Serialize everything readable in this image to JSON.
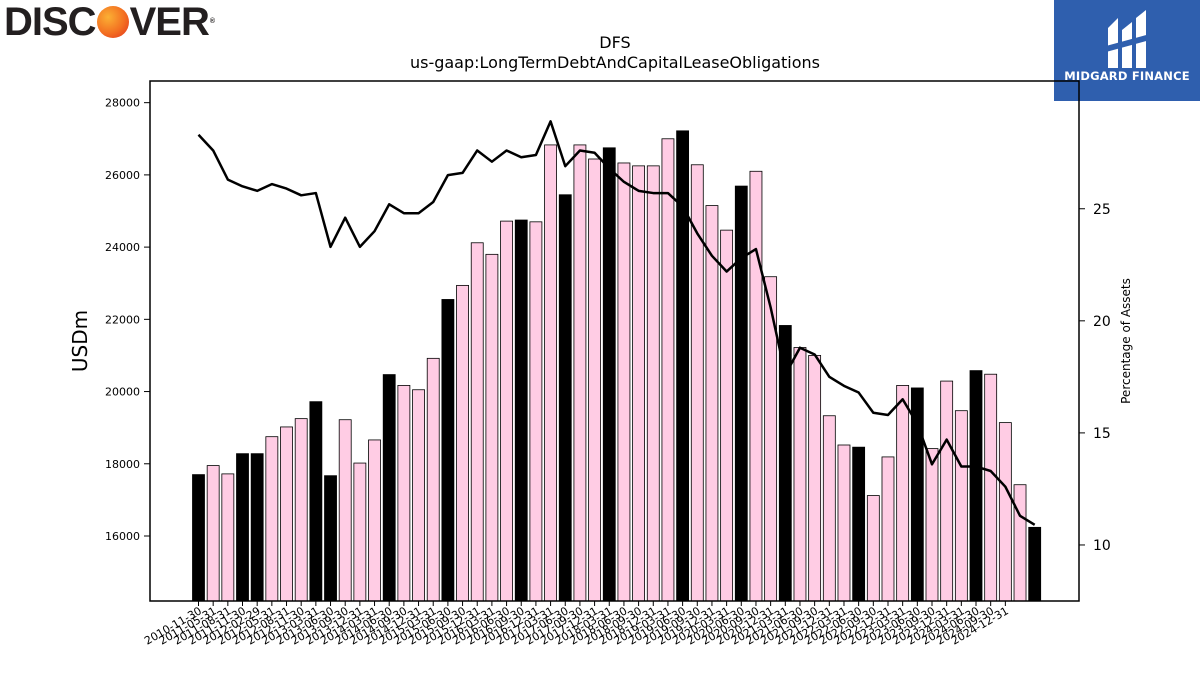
{
  "brand": {
    "left": "DISC",
    "right": "VER",
    "reg": "®"
  },
  "watermark": {
    "name": "MIDGARD FINANCE"
  },
  "chart_data": {
    "type": "bar",
    "title": "DFS",
    "subtitle": "us-gaap:LongTermDebtAndCapitalLeaseObligations",
    "ylabel": "USDm",
    "y2label": "Percentage of Assets",
    "ylim": [
      14200,
      28600
    ],
    "y2lim": [
      7.5,
      30.7
    ],
    "yticks": [
      16000,
      18000,
      20000,
      22000,
      24000,
      26000,
      28000
    ],
    "y2ticks": [
      10,
      15,
      20,
      25
    ],
    "categories": [
      "2010-11-30",
      "2011-05-31",
      "2011-08-31",
      "2011-11-30",
      "2012-02-29",
      "2012-05-31",
      "2012-08-31",
      "2012-11-30",
      "2013-03-31",
      "2013-06-30",
      "2013-09-30",
      "2013-12-31",
      "2014-03-31",
      "2014-06-30",
      "2014-09-30",
      "2014-12-31",
      "2015-03-31",
      "2015-06-30",
      "2015-09-30",
      "2015-12-31",
      "2016-03-31",
      "2016-06-30",
      "2016-09-30",
      "2016-12-31",
      "2017-03-31",
      "2017-06-30",
      "2017-09-30",
      "2017-12-31",
      "2018-03-31",
      "2018-06-30",
      "2018-09-30",
      "2018-12-31",
      "2019-03-31",
      "2019-06-30",
      "2019-09-30",
      "2019-12-31",
      "2020-03-31",
      "2020-06-30",
      "2020-09-30",
      "2020-12-31",
      "2021-03-31",
      "2021-06-30",
      "2021-09-30",
      "2021-12-31",
      "2022-03-31",
      "2022-06-30",
      "2022-09-30",
      "2022-12-31",
      "2023-03-31",
      "2023-06-30",
      "2023-09-30",
      "2023-12-31",
      "2024-03-31",
      "2024-06-30",
      "2024-09-30",
      "2024-12-31"
    ],
    "tick_labels": [
      "2010-11-30",
      "2011-05-31",
      "2011-08-31",
      "2011-11-30",
      "2012-02-29",
      "2012-05-31",
      "2012-08-31",
      "2012-11-30",
      "2013-03-31",
      "2013-06-30",
      "2013-09-30",
      "2013-12-31",
      "2014-03-31",
      "2014-06-30",
      "2014-09-30",
      "2014-12-31",
      "2015-03-31",
      "2015-06-30",
      "2015-09-30",
      "2015-12-31",
      "2016-03-31",
      "2016-06-30",
      "2016-09-30",
      "2016-12-31",
      "2017-03-31",
      "2017-06-30",
      "2017-09-30",
      "2017-12-31",
      "2018-03-31",
      "2018-06-30",
      "2018-09-30",
      "2018-12-31",
      "2019-03-31",
      "2019-06-30",
      "2019-09-30",
      "2019-12-31",
      "2020-03-31",
      "2020-06-30",
      "2020-09-30",
      "2020-12-31",
      "2021-03-31",
      "2021-06-30",
      "2021-09-30",
      "2021-12-31",
      "2022-03-31",
      "2022-06-30",
      "2022-09-30",
      "2022-12-31",
      "2023-03-31",
      "2023-06-30",
      "2023-09-30",
      "2023-12-31",
      "2024-03-31",
      "2024-06-30",
      "2024-09-30",
      "2024-12-31"
    ],
    "values": [
      17700,
      17950,
      17720,
      18280,
      18280,
      18750,
      19020,
      19250,
      19720,
      17670,
      19220,
      18020,
      18660,
      20470,
      20170,
      20050,
      20920,
      22550,
      22940,
      24120,
      23800,
      24720,
      24750,
      24700,
      26830,
      25450,
      26830,
      26440,
      26750,
      26330,
      26250,
      26250,
      27000,
      27220,
      26280,
      25150,
      24470,
      25690,
      26100,
      23180,
      21830,
      21220,
      21000,
      19330,
      18520,
      18460,
      17120,
      18190,
      20170,
      20100,
      18420,
      20290,
      19470,
      20580,
      20480,
      19140
    ],
    "extra_values": [
      17420,
      16240
    ],
    "highlight": [
      0,
      3,
      4,
      8,
      9,
      13,
      17,
      22,
      25,
      28,
      33,
      37,
      40,
      45,
      49,
      53,
      57
    ],
    "pct_assets": [
      28.3,
      27.6,
      26.3,
      26.0,
      25.8,
      26.1,
      25.9,
      25.6,
      25.7,
      23.3,
      24.6,
      23.3,
      24.0,
      25.2,
      24.8,
      24.8,
      25.3,
      26.5,
      26.6,
      27.6,
      27.1,
      27.6,
      27.3,
      27.4,
      28.9,
      26.9,
      27.6,
      27.5,
      26.8,
      26.2,
      25.8,
      25.7,
      25.7,
      25.1,
      23.9,
      22.9,
      22.2,
      22.8,
      23.2,
      20.6,
      17.6,
      18.8,
      18.5,
      17.5,
      17.1,
      16.8,
      15.9,
      15.8,
      16.5,
      15.4,
      13.6,
      14.7,
      13.5,
      13.5,
      13.3,
      12.6,
      11.3,
      10.9
    ],
    "colors": {
      "bar_fill": "#ffcce4",
      "bar_highlight": "#000000",
      "bar_edge": "#000000",
      "line": "#000000"
    },
    "grid": false,
    "legend": "none"
  }
}
